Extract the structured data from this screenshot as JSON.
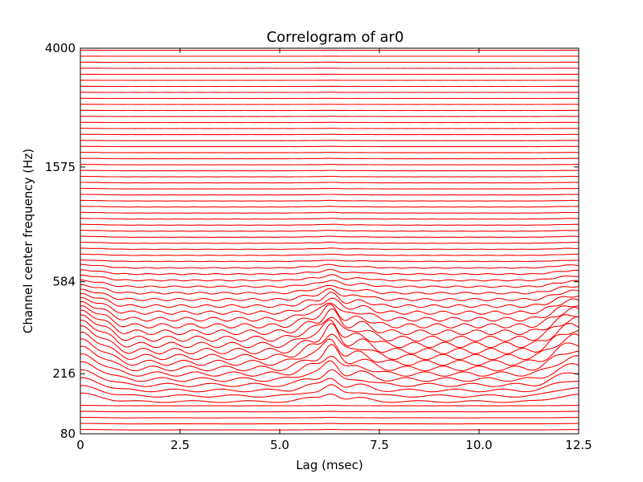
{
  "chart_data": {
    "type": "line",
    "title": "Correlogram of ar0",
    "xlabel": "Lag (msec)",
    "ylabel": "Channel center frequency (Hz)",
    "xlim": [
      0,
      12.5
    ],
    "x_ticks": [
      "0",
      "2.5",
      "5.0",
      "7.5",
      "10.0",
      "12.5"
    ],
    "x_tick_values": [
      0,
      2.5,
      5.0,
      7.5,
      10.0,
      12.5
    ],
    "y_ticks": [
      "80",
      "216",
      "584",
      "1575",
      "4000"
    ],
    "y_tick_frequencies": [
      80,
      216,
      584,
      1575,
      4000
    ],
    "channel_count": 64,
    "line_color": "#ff0000",
    "grid": false,
    "legend": "none",
    "peak_lags_msec": [
      6.3,
      12.5
    ],
    "secondary_peak_lags_msec": [
      0.5,
      5.8,
      7.0,
      12.0
    ],
    "note_channels": "stacked correlogram traces, one per cochlear channel, peaks strongest in low channels near 216 Hz"
  }
}
